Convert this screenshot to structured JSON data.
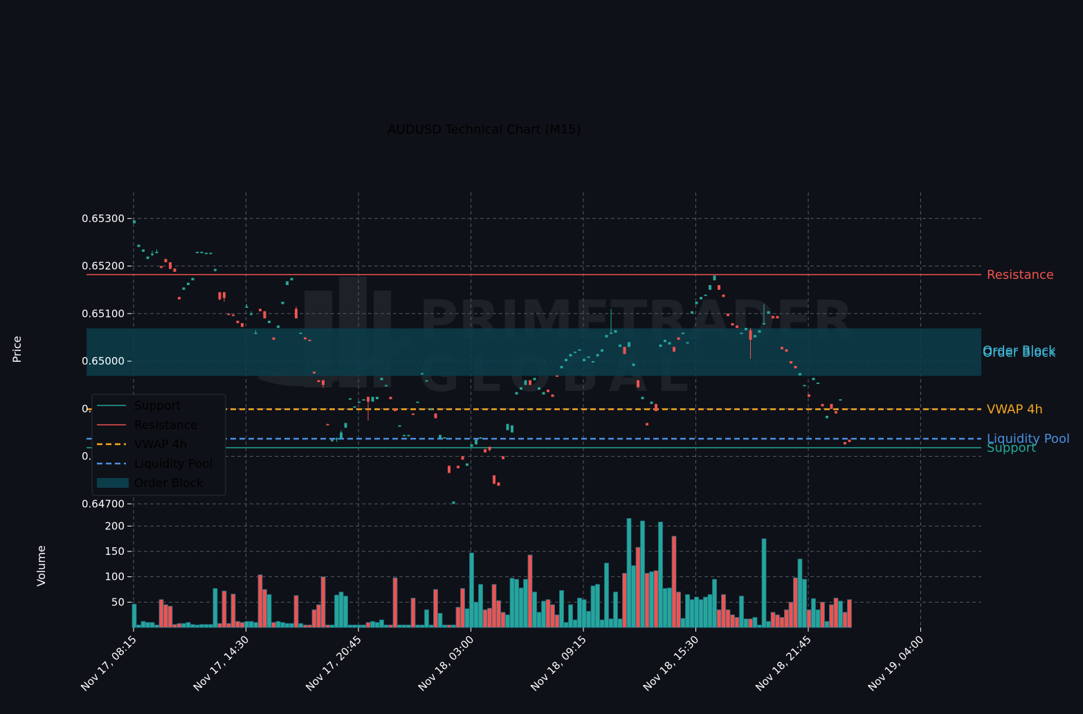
{
  "chart_data": {
    "type": "candlestick",
    "title": "AUDUSD Technical Chart (M15)",
    "ylabel": "Price",
    "volume_ylabel": "Volume",
    "watermark": [
      "PRIMETRADER",
      "GLOBAL"
    ],
    "ylim": [
      0.6468,
      0.65355
    ],
    "volume_ylim": [
      0,
      225
    ],
    "yticks": [
      "0.64700",
      "0.64800",
      "0.64900",
      "0.65000",
      "0.65100",
      "0.65200",
      "0.65300"
    ],
    "volume_yticks": [
      "50",
      "100",
      "150",
      "200"
    ],
    "xticks": [
      "Nov 17, 08:15",
      "Nov 17, 14:30",
      "Nov 17, 20:45",
      "Nov 18, 03:00",
      "Nov 18, 09:15",
      "Nov 18, 15:30",
      "Nov 18, 21:45",
      "Nov 19, 04:00"
    ],
    "bars_per_xtick": 25,
    "colors": {
      "up": "#26a69a",
      "down": "#ef5350",
      "support": "#26a69a",
      "resistance": "#ef5350",
      "vwap": "#f5a623",
      "liquidity": "#4a90e2",
      "order_block": "#0b3d4a",
      "order_block_label": "#3fb8d8"
    },
    "levels": {
      "support": {
        "label": "Support",
        "value": 0.64818
      },
      "resistance": {
        "label": "Resistance",
        "value": 0.65182
      },
      "vwap": {
        "label": "VWAP 4h",
        "value": 0.64899
      },
      "liquidity": {
        "label": "Liquidity Pool",
        "value": 0.64837
      },
      "order_block": {
        "label": "Order Block",
        "label2": "Order Block",
        "low": 0.64969,
        "high": 0.65069
      }
    },
    "legend": [
      "Support",
      "Resistance",
      "VWAP 4h",
      "Liquidity Pool",
      "Order Block"
    ],
    "candles": [
      [
        0.6529,
        0.65296,
        0.65296,
        0.6529,
        46
      ],
      [
        0.6524,
        0.65245,
        0.65245,
        0.6524,
        5
      ],
      [
        0.6523,
        0.65235,
        0.65235,
        0.6523,
        12
      ],
      [
        0.65215,
        0.6522,
        0.6522,
        0.65215,
        10
      ],
      [
        0.65226,
        0.65226,
        0.65232,
        0.65221,
        10
      ],
      [
        0.6523,
        0.6523,
        0.65235,
        0.65228,
        5
      ],
      [
        0.652,
        0.65196,
        0.652,
        0.65196,
        55
      ],
      [
        0.65215,
        0.65208,
        0.65215,
        0.65208,
        45
      ],
      [
        0.65208,
        0.65194,
        0.65208,
        0.65194,
        42
      ],
      [
        0.65195,
        0.65188,
        0.65195,
        0.65188,
        6
      ],
      [
        0.65135,
        0.6513,
        0.65135,
        0.6513,
        8
      ],
      [
        0.6515,
        0.65155,
        0.65155,
        0.6515,
        8
      ],
      [
        0.6516,
        0.65165,
        0.65165,
        0.6516,
        10
      ],
      [
        0.6517,
        0.65175,
        0.65175,
        0.6517,
        6
      ],
      [
        0.6523,
        0.6523,
        0.6523,
        0.6523,
        5
      ],
      [
        0.6523,
        0.6523,
        0.6523,
        0.6523,
        6
      ],
      [
        0.65228,
        0.65228,
        0.65228,
        0.65228,
        6
      ],
      [
        0.65228,
        0.65228,
        0.65228,
        0.65228,
        6
      ],
      [
        0.6519,
        0.65194,
        0.65194,
        0.65188,
        77
      ],
      [
        0.65145,
        0.6513,
        0.65145,
        0.65128,
        8
      ],
      [
        0.65145,
        0.65133,
        0.65145,
        0.65125,
        72
      ],
      [
        0.651,
        0.65097,
        0.651,
        0.65097,
        8
      ],
      [
        0.65098,
        0.65095,
        0.65098,
        0.65095,
        66
      ],
      [
        0.65085,
        0.6508,
        0.65085,
        0.6508,
        12
      ],
      [
        0.6508,
        0.65072,
        0.6508,
        0.65072,
        10
      ],
      [
        0.65115,
        0.65115,
        0.6512,
        0.65115,
        12
      ],
      [
        0.651,
        0.651,
        0.65105,
        0.651,
        12
      ],
      [
        0.6506,
        0.6506,
        0.65065,
        0.6506,
        10
      ],
      [
        0.6511,
        0.65105,
        0.6511,
        0.65105,
        104
      ],
      [
        0.65105,
        0.6509,
        0.65105,
        0.6509,
        75
      ],
      [
        0.6508,
        0.65085,
        0.65085,
        0.6508,
        65
      ],
      [
        0.6505,
        0.65045,
        0.6505,
        0.65045,
        10
      ],
      [
        0.6507,
        0.65075,
        0.65075,
        0.6507,
        12
      ],
      [
        0.6512,
        0.65125,
        0.65125,
        0.6512,
        10
      ],
      [
        0.6516,
        0.65168,
        0.65168,
        0.6516,
        8
      ],
      [
        0.6517,
        0.65175,
        0.65175,
        0.6517,
        8
      ],
      [
        0.6511,
        0.6509,
        0.65115,
        0.6509,
        63
      ],
      [
        0.6506,
        0.6506,
        0.6506,
        0.6506,
        8
      ],
      [
        0.6505,
        0.65046,
        0.6505,
        0.65046,
        5
      ],
      [
        0.65045,
        0.65044,
        0.65045,
        0.65044,
        5
      ],
      [
        0.64978,
        0.64974,
        0.64978,
        0.64974,
        35
      ],
      [
        0.6496,
        0.64956,
        0.6496,
        0.64956,
        45
      ],
      [
        0.6496,
        0.6495,
        0.6496,
        0.64944,
        100
      ],
      [
        0.64868,
        0.64867,
        0.64868,
        0.64867,
        5
      ],
      [
        0.64835,
        0.64835,
        0.64838,
        0.6483,
        5
      ],
      [
        0.64838,
        0.64838,
        0.6484,
        0.6483,
        64
      ],
      [
        0.64838,
        0.6485,
        0.64855,
        0.64838,
        70
      ],
      [
        0.6486,
        0.6487,
        0.6487,
        0.6486,
        62
      ],
      [
        0.6492,
        0.64922,
        0.64922,
        0.6492,
        5
      ],
      [
        0.64905,
        0.64905,
        0.64905,
        0.64905,
        5
      ],
      [
        0.64915,
        0.64915,
        0.64915,
        0.64915,
        5
      ],
      [
        0.6492,
        0.6492,
        0.6492,
        0.6492,
        5
      ],
      [
        0.64925,
        0.64915,
        0.64925,
        0.64875,
        10
      ],
      [
        0.64915,
        0.64925,
        0.64925,
        0.64915,
        12
      ],
      [
        0.6492,
        0.64925,
        0.64925,
        0.6492,
        10
      ],
      [
        0.6496,
        0.64965,
        0.64965,
        0.6496,
        15
      ],
      [
        0.6495,
        0.6495,
        0.6495,
        0.6495,
        5
      ],
      [
        0.64925,
        0.6492,
        0.64925,
        0.6492,
        5
      ],
      [
        0.649,
        0.64895,
        0.649,
        0.64895,
        98
      ],
      [
        0.64865,
        0.64865,
        0.64865,
        0.64865,
        5
      ],
      [
        0.64845,
        0.64845,
        0.64845,
        0.64845,
        5
      ],
      [
        0.64845,
        0.64845,
        0.64845,
        0.64845,
        5
      ],
      [
        0.6489,
        0.64887,
        0.6489,
        0.64887,
        58
      ],
      [
        0.64915,
        0.64915,
        0.64915,
        0.64915,
        5
      ],
      [
        0.64975,
        0.64975,
        0.64975,
        0.64975,
        5
      ],
      [
        0.6496,
        0.6496,
        0.6496,
        0.6496,
        35
      ],
      [
        0.649,
        0.649,
        0.649,
        0.649,
        5
      ],
      [
        0.6489,
        0.6488,
        0.6489,
        0.6488,
        75
      ],
      [
        0.64838,
        0.64845,
        0.64845,
        0.64835,
        28
      ],
      [
        0.6484,
        0.6484,
        0.6484,
        0.6484,
        5
      ],
      [
        0.6478,
        0.64765,
        0.6478,
        0.64765,
        5
      ],
      [
        0.647,
        0.64705,
        0.64705,
        0.647,
        5
      ],
      [
        0.6478,
        0.64775,
        0.6478,
        0.64775,
        40
      ],
      [
        0.648,
        0.64793,
        0.648,
        0.64793,
        77
      ],
      [
        0.6478,
        0.64785,
        0.64785,
        0.6478,
        37
      ],
      [
        0.6482,
        0.64825,
        0.64825,
        0.6482,
        147
      ],
      [
        0.64825,
        0.64835,
        0.64835,
        0.64825,
        50
      ],
      [
        0.6484,
        0.6484,
        0.6484,
        0.6484,
        85
      ],
      [
        0.64815,
        0.64808,
        0.64815,
        0.64808,
        35
      ],
      [
        0.6482,
        0.64813,
        0.6482,
        0.6481,
        38
      ],
      [
        0.6476,
        0.64742,
        0.6476,
        0.64742,
        85
      ],
      [
        0.64745,
        0.64738,
        0.64745,
        0.64738,
        53
      ],
      [
        0.648,
        0.64794,
        0.648,
        0.64794,
        30
      ],
      [
        0.64855,
        0.64868,
        0.64868,
        0.64855,
        25
      ],
      [
        0.6485,
        0.64865,
        0.64865,
        0.6485,
        97
      ],
      [
        0.6493,
        0.64935,
        0.64935,
        0.6493,
        95
      ],
      [
        0.6494,
        0.64945,
        0.64945,
        0.6494,
        78
      ],
      [
        0.6495,
        0.6496,
        0.6496,
        0.6495,
        95
      ],
      [
        0.6496,
        0.6495,
        0.6496,
        0.6495,
        143
      ],
      [
        0.6496,
        0.64965,
        0.64965,
        0.6496,
        70
      ],
      [
        0.6494,
        0.64945,
        0.64945,
        0.6494,
        30
      ],
      [
        0.6493,
        0.64935,
        0.64935,
        0.6493,
        52
      ],
      [
        0.6494,
        0.64935,
        0.6494,
        0.64935,
        55
      ],
      [
        0.6493,
        0.64925,
        0.6493,
        0.64925,
        45
      ],
      [
        0.6497,
        0.64968,
        0.6497,
        0.64968,
        25
      ],
      [
        0.64985,
        0.6499,
        0.6499,
        0.64985,
        73
      ],
      [
        0.65,
        0.65005,
        0.65005,
        0.65,
        10
      ],
      [
        0.6501,
        0.65015,
        0.65015,
        0.6501,
        45
      ],
      [
        0.6502,
        0.6502,
        0.6502,
        0.6502,
        15
      ],
      [
        0.65025,
        0.65025,
        0.65025,
        0.65025,
        58
      ],
      [
        0.65,
        0.65005,
        0.65005,
        0.65,
        55
      ],
      [
        0.6501,
        0.6501,
        0.6501,
        0.6501,
        32
      ],
      [
        0.65,
        0.65,
        0.65,
        0.65,
        82
      ],
      [
        0.6501,
        0.65015,
        0.65015,
        0.6501,
        85
      ],
      [
        0.6502,
        0.65025,
        0.65025,
        0.6502,
        15
      ],
      [
        0.6505,
        0.65055,
        0.65055,
        0.6505,
        127
      ],
      [
        0.6506,
        0.6506,
        0.6511,
        0.6506,
        17
      ],
      [
        0.6506,
        0.65065,
        0.65065,
        0.6506,
        70
      ],
      [
        0.6503,
        0.65035,
        0.65035,
        0.6503,
        17
      ],
      [
        0.6503,
        0.65015,
        0.6503,
        0.65015,
        107
      ],
      [
        0.6503,
        0.6504,
        0.6504,
        0.6503,
        215
      ],
      [
        0.6499,
        0.64995,
        0.64995,
        0.6499,
        122
      ],
      [
        0.6496,
        0.64945,
        0.6496,
        0.64945,
        158
      ],
      [
        0.6492,
        0.64925,
        0.64925,
        0.6492,
        210
      ],
      [
        0.6487,
        0.64865,
        0.6487,
        0.64865,
        107
      ],
      [
        0.6491,
        0.64915,
        0.64915,
        0.6491,
        110
      ],
      [
        0.6491,
        0.64895,
        0.6491,
        0.64895,
        112
      ],
      [
        0.6503,
        0.65035,
        0.65035,
        0.6503,
        208
      ],
      [
        0.6504,
        0.65045,
        0.65045,
        0.6504,
        77
      ],
      [
        0.65035,
        0.6504,
        0.6504,
        0.65035,
        78
      ],
      [
        0.6503,
        0.6502,
        0.6503,
        0.6502,
        180
      ],
      [
        0.6505,
        0.65045,
        0.6505,
        0.65045,
        70
      ],
      [
        0.6506,
        0.6506,
        0.6506,
        0.6506,
        18
      ],
      [
        0.6504,
        0.6504,
        0.6504,
        0.6504,
        65
      ],
      [
        0.651,
        0.65105,
        0.65105,
        0.651,
        55
      ],
      [
        0.6512,
        0.65125,
        0.65125,
        0.6512,
        60
      ],
      [
        0.6513,
        0.65135,
        0.65135,
        0.6513,
        55
      ],
      [
        0.6514,
        0.6514,
        0.6514,
        0.6514,
        60
      ],
      [
        0.6515,
        0.6516,
        0.6516,
        0.6515,
        65
      ],
      [
        0.6517,
        0.6518,
        0.6518,
        0.6517,
        95
      ],
      [
        0.6516,
        0.6515,
        0.6516,
        0.6515,
        35
      ],
      [
        0.6514,
        0.65135,
        0.6514,
        0.65135,
        65
      ],
      [
        0.651,
        0.65095,
        0.651,
        0.65095,
        35
      ],
      [
        0.6508,
        0.65075,
        0.6508,
        0.65075,
        25
      ],
      [
        0.65075,
        0.6507,
        0.65075,
        0.6507,
        20
      ],
      [
        0.6506,
        0.6506,
        0.6506,
        0.6506,
        62
      ],
      [
        0.65065,
        0.6507,
        0.6507,
        0.65065,
        17
      ],
      [
        0.65065,
        0.65045,
        0.6507,
        0.65005,
        17
      ],
      [
        0.6505,
        0.65055,
        0.65055,
        0.6505,
        20
      ],
      [
        0.6506,
        0.65065,
        0.65065,
        0.6506,
        5
      ],
      [
        0.6508,
        0.6508,
        0.6512,
        0.6508,
        175
      ],
      [
        0.651,
        0.65105,
        0.65105,
        0.651,
        12
      ],
      [
        0.65095,
        0.6509,
        0.65095,
        0.6509,
        30
      ],
      [
        0.65095,
        0.6509,
        0.65095,
        0.6509,
        25
      ],
      [
        0.6503,
        0.65025,
        0.6503,
        0.65025,
        20
      ],
      [
        0.65025,
        0.6502,
        0.65025,
        0.6502,
        35
      ],
      [
        0.65,
        0.64995,
        0.65,
        0.64995,
        50
      ],
      [
        0.6499,
        0.64985,
        0.6499,
        0.64985,
        98
      ],
      [
        0.6497,
        0.64975,
        0.64975,
        0.6497,
        135
      ],
      [
        0.6495,
        0.6495,
        0.6495,
        0.6495,
        95
      ],
      [
        0.6493,
        0.64925,
        0.6493,
        0.64925,
        35
      ],
      [
        0.6496,
        0.64965,
        0.64965,
        0.6496,
        57
      ],
      [
        0.64955,
        0.64955,
        0.64955,
        0.64955,
        35
      ],
      [
        0.6491,
        0.64905,
        0.6491,
        0.64905,
        50
      ],
      [
        0.6488,
        0.64885,
        0.64885,
        0.6488,
        12
      ],
      [
        0.6491,
        0.649,
        0.6491,
        0.649,
        45
      ],
      [
        0.64895,
        0.6489,
        0.64895,
        0.6489,
        58
      ],
      [
        0.6492,
        0.6492,
        0.6492,
        0.6492,
        52
      ],
      [
        0.6483,
        0.64825,
        0.6483,
        0.64825,
        30
      ],
      [
        0.64835,
        0.6483,
        0.64835,
        0.6483,
        55
      ]
    ]
  }
}
